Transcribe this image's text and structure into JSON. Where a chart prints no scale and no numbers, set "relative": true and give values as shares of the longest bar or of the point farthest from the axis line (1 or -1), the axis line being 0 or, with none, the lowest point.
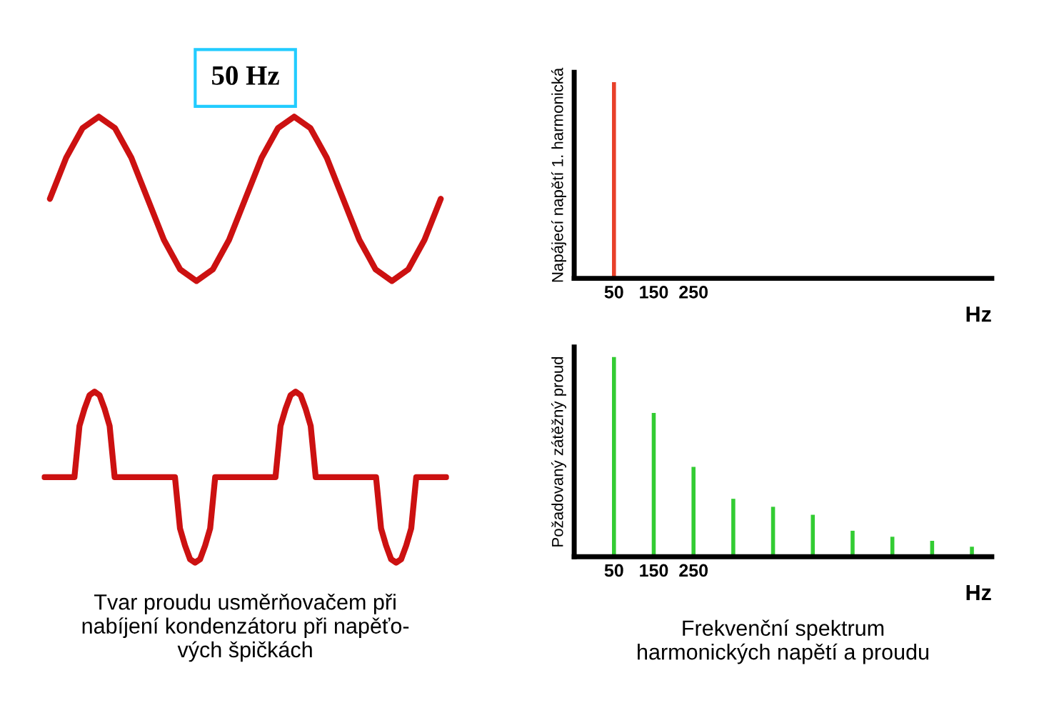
{
  "chart_data": [
    {
      "type": "line",
      "title": "50 Hz",
      "relative": true,
      "tick_labels": false,
      "grid": false,
      "categories": [
        null,
        null,
        null,
        null,
        null,
        null,
        null,
        null,
        null,
        null,
        null,
        null,
        null,
        null,
        null,
        null,
        null,
        null,
        null,
        null,
        null,
        null,
        null,
        null,
        null
      ],
      "series": [
        {
          "color": "#cc1111",
          "values": [
            0.5,
            0.75,
            0.93,
            1,
            0.93,
            0.75,
            0.5,
            0.25,
            0.07,
            0,
            0.07,
            0.25,
            0.5,
            0.75,
            0.93,
            1,
            0.93,
            0.75,
            0.5,
            0.25,
            0.07,
            0,
            0.07,
            0.25,
            0.5
          ]
        }
      ]
    },
    {
      "type": "bar",
      "relative": true,
      "tick_labels": "x",
      "grid": false,
      "ylabel": "Napájecí napětí 1. harmonická",
      "xlabel": "Hz",
      "categories": [
        "50",
        "150",
        "250",
        null,
        null,
        null,
        null,
        null,
        null,
        null
      ],
      "series": [
        {
          "color": "#e8402a",
          "values": [
            1,
            null,
            null,
            null,
            null,
            null,
            null,
            null,
            null,
            null
          ]
        }
      ]
    },
    {
      "type": "line",
      "relative": true,
      "tick_labels": false,
      "grid": false,
      "annotations": [
        "Tvar proudu usměrňovačem při\nnabíjení kondenzátoru při napěťo-\nvých špičkách"
      ],
      "categories": [
        null,
        null,
        null,
        null,
        null,
        null,
        null,
        null,
        null,
        null,
        null,
        null,
        null,
        null,
        null,
        null,
        null,
        null,
        null,
        null,
        null,
        null,
        null,
        null,
        null,
        null,
        null,
        null,
        null,
        null,
        null,
        null,
        null,
        null,
        null,
        null,
        null,
        null,
        null,
        null,
        null,
        null,
        null,
        null,
        null,
        null,
        null,
        null,
        null,
        null,
        null,
        null,
        null,
        null,
        null,
        null,
        null,
        null,
        null,
        null,
        null,
        null,
        null,
        null,
        null,
        null,
        null,
        null,
        null,
        null,
        null,
        null,
        null,
        null,
        null,
        null,
        null,
        null,
        null,
        null,
        null
      ],
      "series": [
        {
          "color": "#cc1111",
          "values": [
            0.5,
            0.5,
            0.5,
            0.5,
            0.5,
            0.5,
            0.5,
            0.8,
            0.9,
            0.98,
            1,
            0.98,
            0.9,
            0.8,
            0.5,
            0.5,
            0.5,
            0.5,
            0.5,
            0.5,
            0.5,
            0.5,
            0.5,
            0.5,
            0.5,
            0.5,
            0.5,
            0.2,
            0.1,
            0.02,
            0,
            0.02,
            0.1,
            0.2,
            0.5,
            0.5,
            0.5,
            0.5,
            0.5,
            0.5,
            0.5,
            0.5,
            0.5,
            0.5,
            0.5,
            0.5,
            0.5,
            0.8,
            0.9,
            0.98,
            1,
            0.98,
            0.9,
            0.8,
            0.5,
            0.5,
            0.5,
            0.5,
            0.5,
            0.5,
            0.5,
            0.5,
            0.5,
            0.5,
            0.5,
            0.5,
            0.5,
            0.2,
            0.1,
            0.02,
            0,
            0.02,
            0.1,
            0.2,
            0.5,
            0.5,
            0.5,
            0.5,
            0.5,
            0.5,
            0.5
          ]
        }
      ]
    },
    {
      "type": "bar",
      "relative": true,
      "tick_labels": "x",
      "grid": false,
      "ylabel": "Požadovaný zátěžný proud",
      "xlabel": "Hz",
      "annotations": [
        "Frekvenční spektrum\nharmonických napětí a proudu"
      ],
      "categories": [
        "50",
        "150",
        "250",
        null,
        null,
        null,
        null,
        null,
        null,
        null
      ],
      "series": [
        {
          "color": "#33cc33",
          "values": [
            1,
            0.72,
            0.45,
            0.29,
            0.25,
            0.21,
            0.13,
            0.1,
            0.08,
            0.05
          ]
        }
      ]
    }
  ]
}
